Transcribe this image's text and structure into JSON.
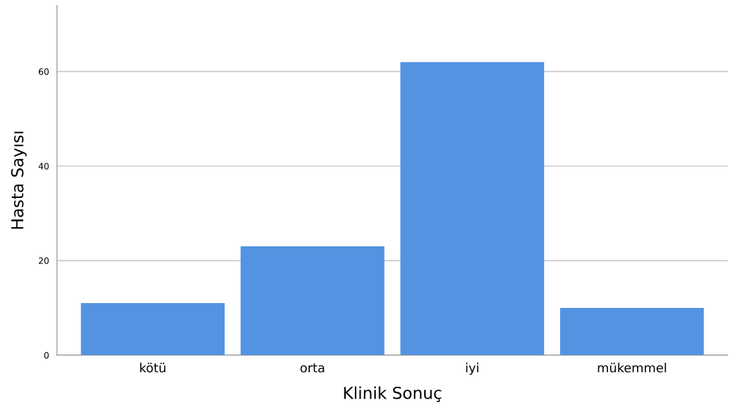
{
  "chart_data": {
    "type": "bar",
    "xlabel": "Klinik Sonuç",
    "ylabel": "Hasta Sayısı",
    "categories": [
      "kötü",
      "orta",
      "iyi",
      "mükemmel"
    ],
    "values": [
      11,
      23,
      62,
      10
    ],
    "color": "#5393e2",
    "ylim": [
      0,
      74
    ],
    "yticks": [
      0,
      20,
      40,
      60
    ],
    "grid": "y"
  }
}
